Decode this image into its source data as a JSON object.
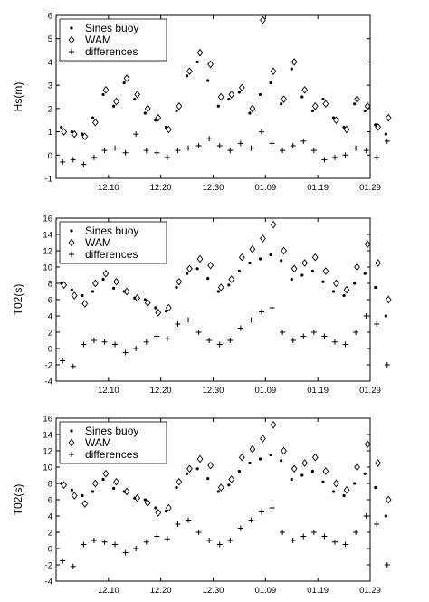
{
  "chart_data": [
    {
      "type": "scatter",
      "title": "",
      "xlabel": "",
      "ylabel": "Hs(m)",
      "ylim": [
        -1,
        6
      ],
      "yticks": [
        "-1",
        "0",
        "1",
        "2",
        "3",
        "4",
        "5",
        "6"
      ],
      "xlim": [
        0,
        12
      ],
      "xticks": [
        {
          "x": 2,
          "label": "12.10"
        },
        {
          "x": 4,
          "label": "12.20"
        },
        {
          "x": 6,
          "label": "12.30"
        },
        {
          "x": 8,
          "label": "01.09"
        },
        {
          "x": 10,
          "label": "01.19"
        },
        {
          "x": 12,
          "label": "01.29"
        }
      ],
      "grid": false,
      "legend_position": "top-left",
      "series": [
        {
          "name": "Sines buoy",
          "marker": "dot",
          "x": [
            0.2,
            0.6,
            1.0,
            1.4,
            1.8,
            2.2,
            2.6,
            3.0,
            3.4,
            3.8,
            4.2,
            4.6,
            5.0,
            5.4,
            5.8,
            6.2,
            6.6,
            7.0,
            7.4,
            7.8,
            8.2,
            8.6,
            9.0,
            9.4,
            9.8,
            10.2,
            10.6,
            11.0,
            11.4,
            11.8,
            12.2,
            12.6
          ],
          "y": [
            1.2,
            1.0,
            0.9,
            1.6,
            2.6,
            2.1,
            3.1,
            2.4,
            1.8,
            1.5,
            1.2,
            1.9,
            3.4,
            4.0,
            3.2,
            2.1,
            2.4,
            2.7,
            1.8,
            2.6,
            3.1,
            2.2,
            3.7,
            2.5,
            1.9,
            2.4,
            1.6,
            1.2,
            2.2,
            1.9,
            1.3,
            0.9
          ]
        },
        {
          "name": "WAM",
          "marker": "diamond-open",
          "x": [
            0.3,
            0.7,
            1.1,
            1.5,
            1.9,
            2.3,
            2.7,
            3.1,
            3.5,
            3.9,
            4.3,
            4.7,
            5.1,
            5.5,
            5.9,
            6.3,
            6.7,
            7.1,
            7.5,
            7.9,
            8.3,
            8.7,
            9.1,
            9.5,
            9.9,
            10.3,
            10.7,
            11.1,
            11.5,
            11.9,
            12.3,
            12.7
          ],
          "y": [
            1.0,
            0.9,
            0.8,
            1.4,
            2.8,
            2.3,
            3.3,
            2.6,
            2.0,
            1.6,
            1.1,
            2.1,
            3.6,
            4.4,
            3.9,
            2.5,
            2.6,
            2.9,
            2.0,
            5.8,
            3.6,
            2.4,
            4.0,
            2.8,
            2.1,
            2.2,
            1.5,
            1.1,
            2.4,
            2.1,
            1.2,
            1.6
          ]
        },
        {
          "name": "differences",
          "marker": "plus",
          "x": [
            0.25,
            0.65,
            1.05,
            1.45,
            1.85,
            2.25,
            2.65,
            3.05,
            3.45,
            3.85,
            4.25,
            4.65,
            5.05,
            5.45,
            5.85,
            6.25,
            6.65,
            7.05,
            7.45,
            7.85,
            8.25,
            8.65,
            9.05,
            9.45,
            9.85,
            10.25,
            10.65,
            11.05,
            11.45,
            11.85,
            12.25,
            12.65
          ],
          "y": [
            -0.3,
            -0.2,
            -0.4,
            -0.1,
            0.2,
            0.3,
            0.1,
            0.9,
            0.2,
            0.1,
            -0.1,
            0.2,
            0.3,
            0.4,
            0.7,
            0.4,
            0.2,
            0.5,
            0.3,
            1.0,
            0.5,
            0.2,
            0.4,
            0.6,
            0.2,
            -0.2,
            -0.1,
            0.0,
            0.3,
            0.2,
            -0.1,
            0.6
          ]
        }
      ]
    },
    {
      "type": "scatter",
      "title": "",
      "xlabel": "",
      "ylabel": "T02(s)",
      "ylim": [
        -4,
        16
      ],
      "yticks": [
        "-4",
        "-2",
        "0",
        "2",
        "4",
        "6",
        "8",
        "10",
        "12",
        "14",
        "16"
      ],
      "xlim": [
        0,
        12
      ],
      "xticks": [
        {
          "x": 2,
          "label": "12.10"
        },
        {
          "x": 4,
          "label": "12.20"
        },
        {
          "x": 6,
          "label": "12.30"
        },
        {
          "x": 8,
          "label": "01.09"
        },
        {
          "x": 10,
          "label": "01.19"
        },
        {
          "x": 12,
          "label": "01.29"
        }
      ],
      "grid": false,
      "legend_position": "top-left",
      "series": [
        {
          "name": "Sines buoy",
          "marker": "dot",
          "x": [
            0.2,
            0.6,
            1.0,
            1.4,
            1.8,
            2.2,
            2.6,
            3.0,
            3.4,
            3.8,
            4.2,
            4.6,
            5.0,
            5.4,
            5.8,
            6.2,
            6.6,
            7.0,
            7.4,
            7.8,
            8.2,
            8.6,
            9.0,
            9.4,
            9.8,
            10.2,
            10.6,
            11.0,
            11.4,
            11.8,
            12.2,
            12.6
          ],
          "y": [
            8.0,
            7.2,
            6.5,
            7.0,
            8.5,
            7.4,
            7.0,
            6.2,
            6.0,
            5.0,
            4.6,
            7.5,
            9.2,
            9.8,
            8.6,
            7.0,
            7.8,
            9.5,
            10.5,
            11.0,
            11.5,
            10.8,
            8.5,
            9.0,
            9.5,
            8.2,
            7.0,
            6.5,
            8.0,
            9.2,
            7.5,
            4.0
          ]
        },
        {
          "name": "WAM",
          "marker": "diamond-open",
          "x": [
            0.3,
            0.7,
            1.1,
            1.5,
            1.9,
            2.3,
            2.7,
            3.1,
            3.5,
            3.9,
            4.3,
            4.7,
            5.1,
            5.5,
            5.9,
            6.3,
            6.7,
            7.1,
            7.5,
            7.9,
            8.3,
            8.7,
            9.1,
            9.5,
            9.9,
            10.3,
            10.7,
            11.1,
            11.5,
            11.9,
            12.3,
            12.7
          ],
          "y": [
            7.8,
            6.5,
            5.5,
            8.0,
            9.2,
            8.2,
            7.0,
            6.2,
            5.6,
            4.4,
            5.0,
            8.2,
            9.8,
            11.0,
            10.2,
            7.5,
            8.5,
            11.2,
            12.2,
            13.5,
            15.2,
            12.0,
            9.8,
            10.5,
            11.2,
            9.5,
            8.0,
            7.2,
            10.0,
            12.8,
            10.5,
            6.0
          ]
        },
        {
          "name": "differences",
          "marker": "plus",
          "x": [
            0.25,
            0.65,
            1.05,
            1.45,
            1.85,
            2.25,
            2.65,
            3.05,
            3.45,
            3.85,
            4.25,
            4.65,
            5.05,
            5.45,
            5.85,
            6.25,
            6.65,
            7.05,
            7.45,
            7.85,
            8.25,
            8.65,
            9.05,
            9.45,
            9.85,
            10.25,
            10.65,
            11.05,
            11.45,
            11.85,
            12.25,
            12.65
          ],
          "y": [
            -1.5,
            -2.2,
            0.5,
            1.0,
            0.8,
            0.5,
            -0.5,
            0.0,
            0.8,
            1.5,
            1.2,
            3.0,
            3.5,
            2.0,
            1.0,
            0.5,
            1.0,
            2.5,
            3.5,
            4.5,
            5.0,
            2.0,
            1.0,
            1.5,
            2.0,
            1.5,
            0.8,
            0.5,
            2.0,
            4.0,
            3.0,
            -2.0
          ]
        }
      ]
    },
    {
      "type": "scatter",
      "title": "",
      "xlabel": "",
      "ylabel": "T02(s)",
      "ylim": [
        -4,
        16
      ],
      "yticks": [
        "-4",
        "-2",
        "0",
        "2",
        "4",
        "6",
        "8",
        "10",
        "12",
        "14",
        "16"
      ],
      "xlim": [
        0,
        12
      ],
      "xticks": [
        {
          "x": 2,
          "label": "12.10"
        },
        {
          "x": 4,
          "label": "12.20"
        },
        {
          "x": 6,
          "label": "12.30"
        },
        {
          "x": 8,
          "label": "01.09"
        },
        {
          "x": 10,
          "label": "01.19"
        },
        {
          "x": 12,
          "label": "01.29"
        }
      ],
      "grid": false,
      "legend_position": "top-left",
      "series": [
        {
          "name": "Sines buoy",
          "marker": "dot",
          "x": [
            0.2,
            0.6,
            1.0,
            1.4,
            1.8,
            2.2,
            2.6,
            3.0,
            3.4,
            3.8,
            4.2,
            4.6,
            5.0,
            5.4,
            5.8,
            6.2,
            6.6,
            7.0,
            7.4,
            7.8,
            8.2,
            8.6,
            9.0,
            9.4,
            9.8,
            10.2,
            10.6,
            11.0,
            11.4,
            11.8,
            12.2,
            12.6
          ],
          "y": [
            8.0,
            7.2,
            6.5,
            7.0,
            8.5,
            7.4,
            7.0,
            6.2,
            6.0,
            5.0,
            4.6,
            7.5,
            9.2,
            9.8,
            8.6,
            7.0,
            7.8,
            9.5,
            10.5,
            11.0,
            11.5,
            10.8,
            8.5,
            9.0,
            9.5,
            8.2,
            7.0,
            6.5,
            8.0,
            9.2,
            7.5,
            4.0
          ]
        },
        {
          "name": "WAM",
          "marker": "diamond-open",
          "x": [
            0.3,
            0.7,
            1.1,
            1.5,
            1.9,
            2.3,
            2.7,
            3.1,
            3.5,
            3.9,
            4.3,
            4.7,
            5.1,
            5.5,
            5.9,
            6.3,
            6.7,
            7.1,
            7.5,
            7.9,
            8.3,
            8.7,
            9.1,
            9.5,
            9.9,
            10.3,
            10.7,
            11.1,
            11.5,
            11.9,
            12.3,
            12.7
          ],
          "y": [
            7.8,
            6.5,
            5.5,
            8.0,
            9.2,
            8.2,
            7.0,
            6.2,
            5.6,
            4.4,
            5.0,
            8.2,
            9.8,
            11.0,
            10.2,
            7.5,
            8.5,
            11.2,
            12.2,
            13.5,
            15.2,
            12.0,
            9.8,
            10.5,
            11.2,
            9.5,
            8.0,
            7.2,
            10.0,
            12.8,
            10.5,
            6.0
          ]
        },
        {
          "name": "differences",
          "marker": "plus",
          "x": [
            0.25,
            0.65,
            1.05,
            1.45,
            1.85,
            2.25,
            2.65,
            3.05,
            3.45,
            3.85,
            4.25,
            4.65,
            5.05,
            5.45,
            5.85,
            6.25,
            6.65,
            7.05,
            7.45,
            7.85,
            8.25,
            8.65,
            9.05,
            9.45,
            9.85,
            10.25,
            10.65,
            11.05,
            11.45,
            11.85,
            12.25,
            12.65
          ],
          "y": [
            -1.5,
            -2.2,
            0.5,
            1.0,
            0.8,
            0.5,
            -0.5,
            0.0,
            0.8,
            1.5,
            1.2,
            3.0,
            3.5,
            2.0,
            1.0,
            0.5,
            1.0,
            2.5,
            3.5,
            4.5,
            5.0,
            2.0,
            1.0,
            1.5,
            2.0,
            1.5,
            0.8,
            0.5,
            2.0,
            4.0,
            3.0,
            -2.0
          ]
        }
      ]
    }
  ]
}
